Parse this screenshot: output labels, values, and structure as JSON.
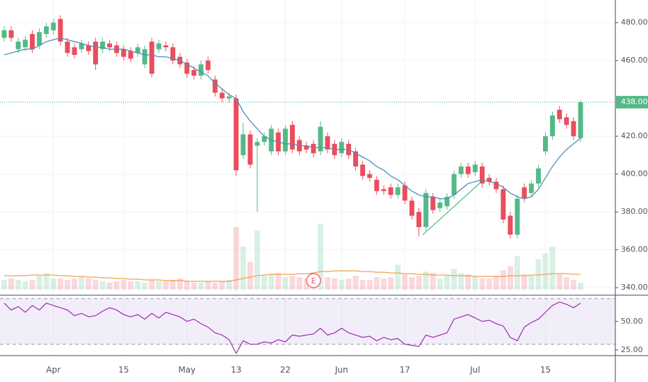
{
  "chart_data": {
    "type": "candlestick",
    "categories": [
      null,
      null,
      null,
      null,
      null,
      null,
      null,
      "Apr",
      null,
      null,
      null,
      null,
      null,
      null,
      null,
      null,
      null,
      "15",
      null,
      null,
      null,
      null,
      null,
      null,
      null,
      null,
      "May",
      null,
      null,
      null,
      null,
      null,
      null,
      "13",
      null,
      null,
      null,
      null,
      null,
      null,
      "22",
      null,
      null,
      null,
      null,
      null,
      null,
      null,
      "Jun",
      null,
      null,
      null,
      null,
      null,
      null,
      null,
      null,
      "17",
      null,
      null,
      null,
      null,
      null,
      null,
      null,
      null,
      null,
      "Jul",
      null,
      null,
      null,
      null,
      null,
      null,
      null,
      null,
      null,
      "15",
      null,
      null,
      null,
      null,
      null
    ],
    "open": [
      472,
      476,
      466,
      467,
      474,
      468,
      474,
      476,
      482,
      470,
      467,
      466,
      468,
      470,
      466,
      469,
      468,
      466,
      465,
      464,
      458,
      470,
      466,
      468,
      467,
      462,
      459,
      455,
      452,
      460,
      450,
      443,
      440,
      440,
      410,
      421,
      415,
      417,
      412,
      422,
      412,
      426,
      418,
      415,
      416,
      412,
      420,
      416,
      411,
      416,
      412,
      405,
      400,
      397,
      392,
      393,
      389,
      394,
      386,
      380,
      372,
      388,
      382,
      383,
      389,
      400,
      404,
      401,
      404,
      398,
      396,
      392,
      378,
      368,
      393,
      390,
      395,
      412,
      420,
      434,
      430,
      428,
      419
    ],
    "high": [
      478,
      478,
      472,
      473,
      476,
      477,
      480,
      482,
      484,
      472,
      469,
      471,
      470,
      472,
      472,
      471,
      470,
      468,
      467,
      469,
      468,
      472,
      471,
      470,
      469,
      464,
      461,
      457,
      460,
      462,
      452,
      445,
      443,
      442,
      427,
      423,
      419,
      422,
      426,
      424,
      426,
      428,
      420,
      417,
      418,
      428,
      422,
      418,
      419,
      418,
      414,
      407,
      402,
      399,
      394,
      395,
      395,
      396,
      388,
      382,
      392,
      390,
      387,
      390,
      402,
      406,
      406,
      407,
      406,
      400,
      398,
      394,
      380,
      389,
      395,
      397,
      405,
      422,
      433,
      436,
      432,
      430,
      439
    ],
    "low": [
      470,
      470,
      464,
      465,
      464,
      466,
      472,
      474,
      468,
      462,
      461,
      464,
      463,
      455,
      464,
      465,
      462,
      460,
      459,
      462,
      456,
      451,
      464,
      465,
      458,
      456,
      451,
      450,
      450,
      453,
      441,
      438,
      438,
      399,
      408,
      403,
      380,
      415,
      410,
      410,
      410,
      411,
      410,
      411,
      409,
      410,
      411,
      408,
      409,
      408,
      402,
      397,
      396,
      389,
      389,
      387,
      387,
      384,
      376,
      367,
      370,
      379,
      380,
      381,
      387,
      398,
      398,
      399,
      393,
      394,
      390,
      374,
      366,
      366,
      385,
      388,
      393,
      410,
      418,
      427,
      424,
      418,
      417
    ],
    "close": [
      476,
      472,
      470,
      471,
      466,
      475,
      478,
      480,
      470,
      464,
      463,
      469,
      465,
      458,
      470,
      467,
      464,
      462,
      461,
      467,
      466,
      453,
      469,
      467,
      460,
      458,
      453,
      452,
      458,
      455,
      443,
      440,
      441,
      402,
      421,
      405,
      417,
      420,
      424,
      412,
      424,
      413,
      412,
      413,
      411,
      425,
      413,
      410,
      417,
      410,
      404,
      399,
      398,
      391,
      391,
      389,
      393,
      386,
      378,
      372,
      390,
      381,
      385,
      388,
      400,
      404,
      400,
      405,
      395,
      396,
      392,
      376,
      368,
      387,
      387,
      395,
      403,
      420,
      431,
      429,
      426,
      420,
      438
    ],
    "up_color": "#53b987",
    "down_color": "#eb4d5c",
    "ma": {
      "color": "#4a90b8",
      "values": [
        463,
        464,
        465,
        466,
        466,
        468,
        470,
        471,
        472,
        471,
        470,
        469,
        468,
        467,
        467,
        466,
        466,
        466,
        465,
        464,
        463,
        463,
        462,
        462,
        461,
        460,
        458,
        456,
        454,
        452,
        448,
        445,
        442,
        440,
        433,
        428,
        424,
        420,
        418,
        417,
        416,
        416,
        415,
        415,
        414,
        414,
        414,
        413,
        413,
        413,
        411,
        409,
        407,
        404,
        402,
        399,
        397,
        394,
        391,
        389,
        388,
        388,
        387,
        387,
        389,
        392,
        395,
        396,
        397,
        396,
        395,
        393,
        390,
        388,
        387,
        388,
        392,
        398,
        404,
        409,
        413,
        416,
        419
      ]
    },
    "volume": {
      "values": [
        14,
        16,
        14,
        12,
        14,
        20,
        24,
        16,
        16,
        14,
        16,
        18,
        16,
        14,
        12,
        10,
        12,
        14,
        12,
        12,
        10,
        14,
        12,
        12,
        14,
        16,
        12,
        10,
        10,
        12,
        10,
        12,
        14,
        90,
        62,
        40,
        85,
        20,
        22,
        24,
        18,
        20,
        18,
        16,
        20,
        95,
        18,
        16,
        14,
        16,
        20,
        14,
        14,
        18,
        16,
        18,
        36,
        22,
        18,
        20,
        26,
        24,
        16,
        20,
        30,
        24,
        22,
        18,
        16,
        16,
        20,
        28,
        34,
        48,
        22,
        20,
        44,
        52,
        62,
        22,
        18,
        14,
        10
      ],
      "ma": [
        20,
        20,
        20,
        20,
        21,
        21,
        21,
        21,
        20,
        20,
        19,
        19,
        18,
        18,
        17,
        17,
        16,
        16,
        15,
        15,
        14,
        14,
        14,
        13,
        13,
        13,
        12,
        12,
        12,
        12,
        12,
        12,
        12,
        14,
        16,
        18,
        20,
        21,
        22,
        22,
        22,
        22,
        23,
        23,
        24,
        26,
        26,
        27,
        27,
        27,
        27,
        26,
        26,
        25,
        25,
        24,
        24,
        23,
        23,
        22,
        22,
        21,
        21,
        21,
        20,
        20,
        20,
        19,
        19,
        19,
        19,
        19,
        20,
        20,
        20,
        21,
        21,
        22,
        23,
        23,
        23,
        22,
        22
      ],
      "ma_color": "#f0a04b"
    },
    "ylim": [
      336,
      492
    ],
    "yticks": [
      {
        "value": 480,
        "label": "480.00"
      },
      {
        "value": 460,
        "label": "460.00"
      },
      {
        "value": 420,
        "label": "420.00"
      },
      {
        "value": 400,
        "label": "400.00"
      },
      {
        "value": 380,
        "label": "380.00"
      },
      {
        "value": 360,
        "label": "360.00"
      },
      {
        "value": 340,
        "label": "340.00"
      }
    ],
    "last": {
      "value": 438,
      "label": "438.00"
    },
    "annotation": "E",
    "grid": true,
    "rsi": {
      "color": "#9c27b0",
      "values": [
        66,
        60,
        63,
        58,
        64,
        60,
        66,
        64,
        62,
        60,
        55,
        57,
        54,
        55,
        59,
        62,
        60,
        56,
        54,
        56,
        52,
        57,
        53,
        58,
        56,
        54,
        50,
        52,
        48,
        45,
        40,
        38,
        34,
        22,
        33,
        30,
        30,
        32,
        31,
        34,
        32,
        38,
        37,
        38,
        39,
        44,
        38,
        40,
        44,
        40,
        38,
        36,
        37,
        33,
        36,
        34,
        35,
        30,
        29,
        28,
        38,
        36,
        38,
        40,
        52,
        54,
        56,
        53,
        50,
        51,
        48,
        46,
        36,
        33,
        45,
        49,
        52,
        58,
        64,
        67,
        65,
        62,
        66
      ],
      "ylim": [
        20,
        73
      ],
      "yticks": [
        {
          "value": 50,
          "label": "50.00"
        },
        {
          "value": 25,
          "label": "25.00"
        }
      ],
      "band": [
        30,
        70
      ]
    }
  }
}
